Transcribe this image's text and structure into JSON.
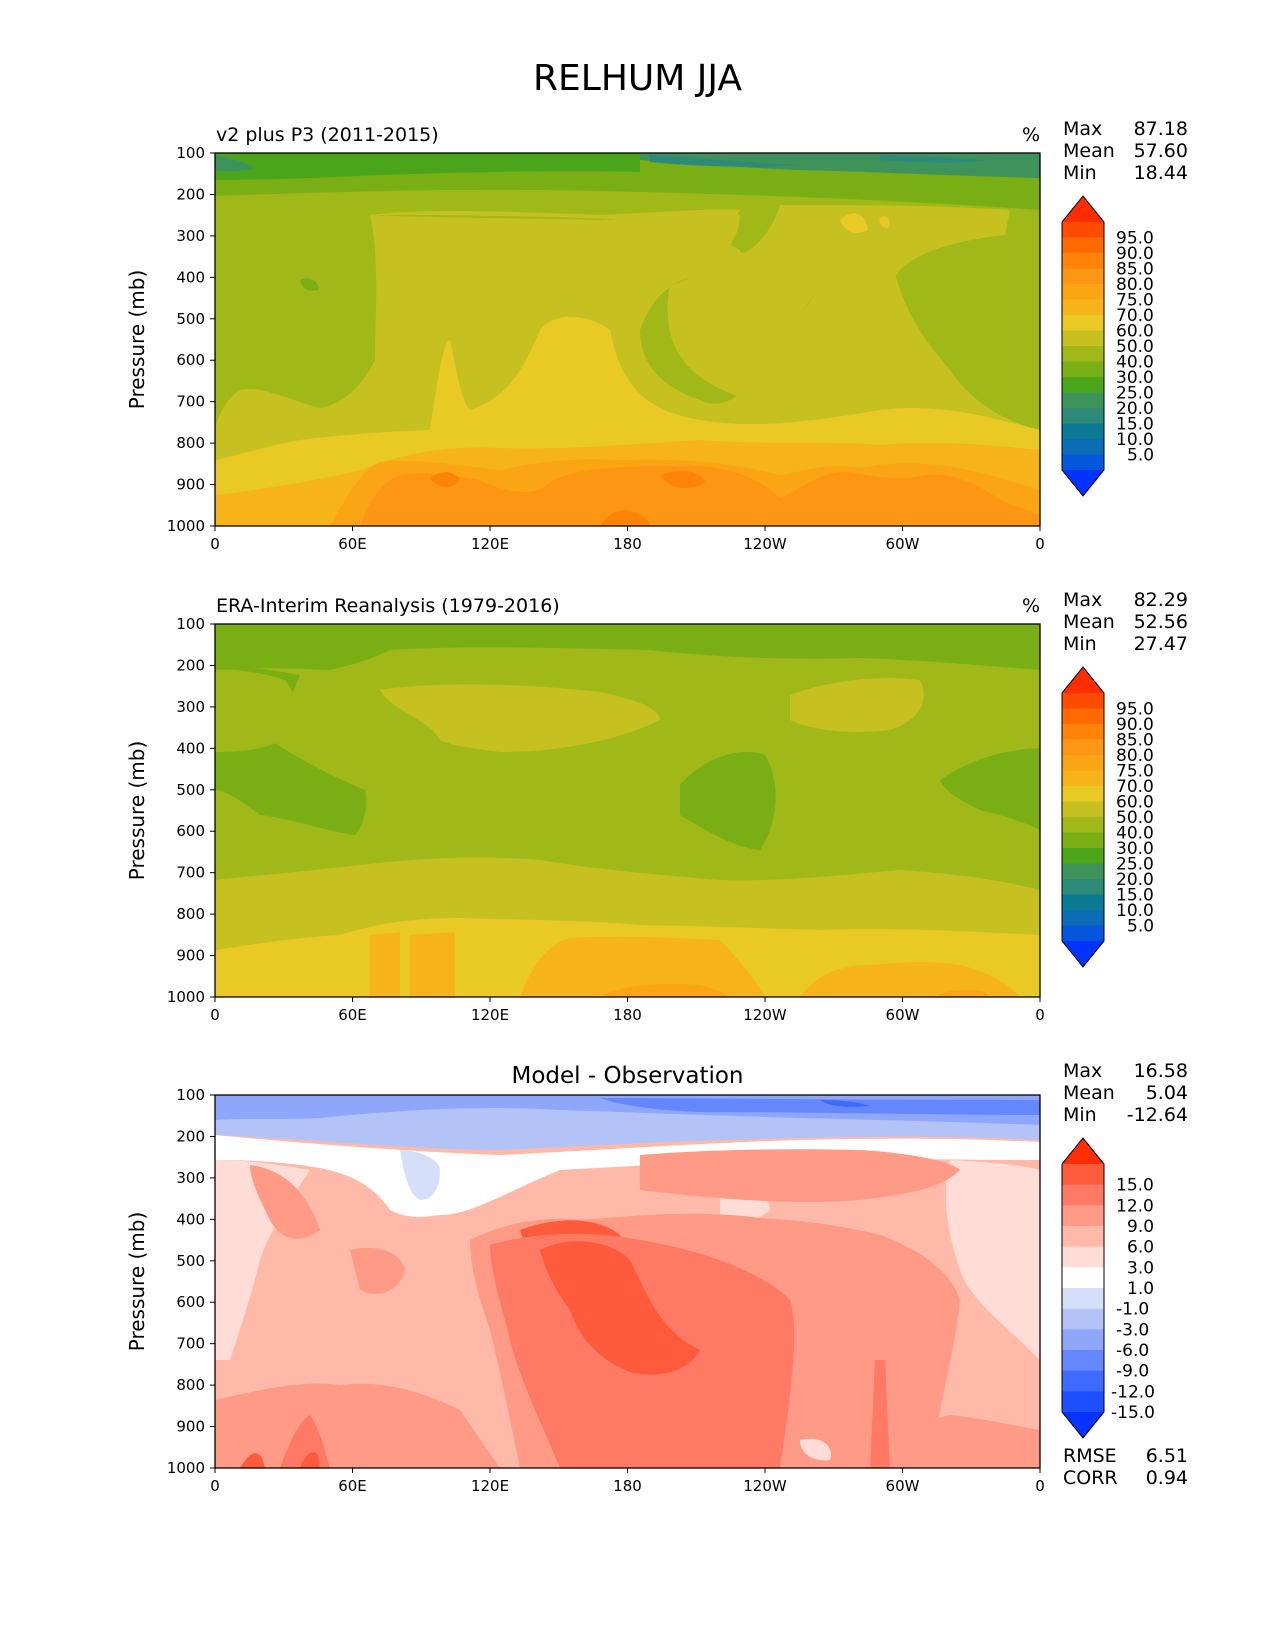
{
  "figure": {
    "title": "RELHUM JJA"
  },
  "x_tick_labels": [
    "0",
    "60E",
    "120E",
    "180",
    "120W",
    "60W",
    "0"
  ],
  "y_tick_labels": [
    "100",
    "200",
    "300",
    "400",
    "500",
    "600",
    "700",
    "800",
    "900",
    "1000"
  ],
  "colors": {
    "abs_scale": [
      "#0432ff",
      "#0456dc",
      "#0a6db6",
      "#0b7b95",
      "#2e8a78",
      "#3e935a",
      "#4aa51b",
      "#79ae14",
      "#a0b918",
      "#c6c120",
      "#e9ca24",
      "#f6b41a",
      "#fba515",
      "#fd9613",
      "#ff8306",
      "#ff6a00",
      "#ff4c00",
      "#ff2d00"
    ],
    "diff_scale": [
      "#0432ff",
      "#1e4fff",
      "#3f6aff",
      "#6487fd",
      "#8ea7fa",
      "#b3c3f7",
      "#d6dffa",
      "#ffffff",
      "#ffdcd5",
      "#ffb9a8",
      "#ff9a86",
      "#ff7a64",
      "#ff5a3c",
      "#ff2d00"
    ]
  },
  "panels": [
    {
      "title": "v2 plus P3 (2011-2015)",
      "units": "%",
      "stats": {
        "max_label": "Max",
        "max": "87.18",
        "mean_label": "Mean",
        "mean": "57.60",
        "min_label": "Min",
        "min": "18.44"
      },
      "colorbar_labels": [
        "95.0",
        "90.0",
        "85.0",
        "80.0",
        "75.0",
        "70.0",
        "60.0",
        "50.0",
        "40.0",
        "30.0",
        "25.0",
        "20.0",
        "15.0",
        "10.0",
        "5.0"
      ]
    },
    {
      "title": "ERA-Interim Reanalysis (1979-2016)",
      "units": "%",
      "stats": {
        "max_label": "Max",
        "max": "82.29",
        "mean_label": "Mean",
        "mean": "52.56",
        "min_label": "Min",
        "min": "27.47"
      },
      "colorbar_labels": [
        "95.0",
        "90.0",
        "85.0",
        "80.0",
        "75.0",
        "70.0",
        "60.0",
        "50.0",
        "40.0",
        "30.0",
        "25.0",
        "20.0",
        "15.0",
        "10.0",
        "5.0"
      ]
    },
    {
      "title": "Model - Observation",
      "stats": {
        "max_label": "Max",
        "max": "16.58",
        "mean_label": "Mean",
        "mean": "5.04",
        "min_label": "Min",
        "min": "-12.64"
      },
      "colorbar_labels": [
        "15.0",
        "12.0",
        "9.0",
        "6.0",
        "3.0",
        "1.0",
        "-1.0",
        "-3.0",
        "-6.0",
        "-9.0",
        "-12.0",
        "-15.0"
      ],
      "extra_stats": {
        "rmse_label": "RMSE",
        "rmse": "6.51",
        "corr_label": "CORR",
        "corr": "0.94"
      }
    }
  ],
  "chart_data": [
    {
      "type": "heatmap",
      "title": "v2 plus P3 (2011-2015)",
      "ylabel": "Pressure (mb)",
      "xlabel": "",
      "x_ticks": [
        "0",
        "60E",
        "120E",
        "180",
        "120W",
        "60W",
        "0"
      ],
      "y_ticks": [
        100,
        200,
        300,
        400,
        500,
        600,
        700,
        800,
        900,
        1000
      ],
      "xlim": [
        0,
        360
      ],
      "ylim": [
        1000,
        100
      ],
      "levels": [
        5,
        10,
        15,
        20,
        25,
        30,
        40,
        50,
        60,
        70,
        75,
        80,
        85,
        90,
        95
      ],
      "stats": {
        "max": 87.18,
        "mean": 57.6,
        "min": 18.44
      }
    },
    {
      "type": "heatmap",
      "title": "ERA-Interim Reanalysis (1979-2016)",
      "ylabel": "Pressure (mb)",
      "xlabel": "",
      "x_ticks": [
        "0",
        "60E",
        "120E",
        "180",
        "120W",
        "60W",
        "0"
      ],
      "y_ticks": [
        100,
        200,
        300,
        400,
        500,
        600,
        700,
        800,
        900,
        1000
      ],
      "xlim": [
        0,
        360
      ],
      "ylim": [
        1000,
        100
      ],
      "levels": [
        5,
        10,
        15,
        20,
        25,
        30,
        40,
        50,
        60,
        70,
        75,
        80,
        85,
        90,
        95
      ],
      "stats": {
        "max": 82.29,
        "mean": 52.56,
        "min": 27.47
      }
    },
    {
      "type": "heatmap",
      "title": "Model - Observation",
      "ylabel": "Pressure (mb)",
      "xlabel": "",
      "x_ticks": [
        "0",
        "60E",
        "120E",
        "180",
        "120W",
        "60W",
        "0"
      ],
      "y_ticks": [
        100,
        200,
        300,
        400,
        500,
        600,
        700,
        800,
        900,
        1000
      ],
      "xlim": [
        0,
        360
      ],
      "ylim": [
        1000,
        100
      ],
      "levels": [
        -15,
        -12,
        -9,
        -6,
        -3,
        -1,
        1,
        3,
        6,
        9,
        12,
        15
      ],
      "stats": {
        "max": 16.58,
        "mean": 5.04,
        "min": -12.64,
        "rmse": 6.51,
        "corr": 0.94
      }
    }
  ]
}
